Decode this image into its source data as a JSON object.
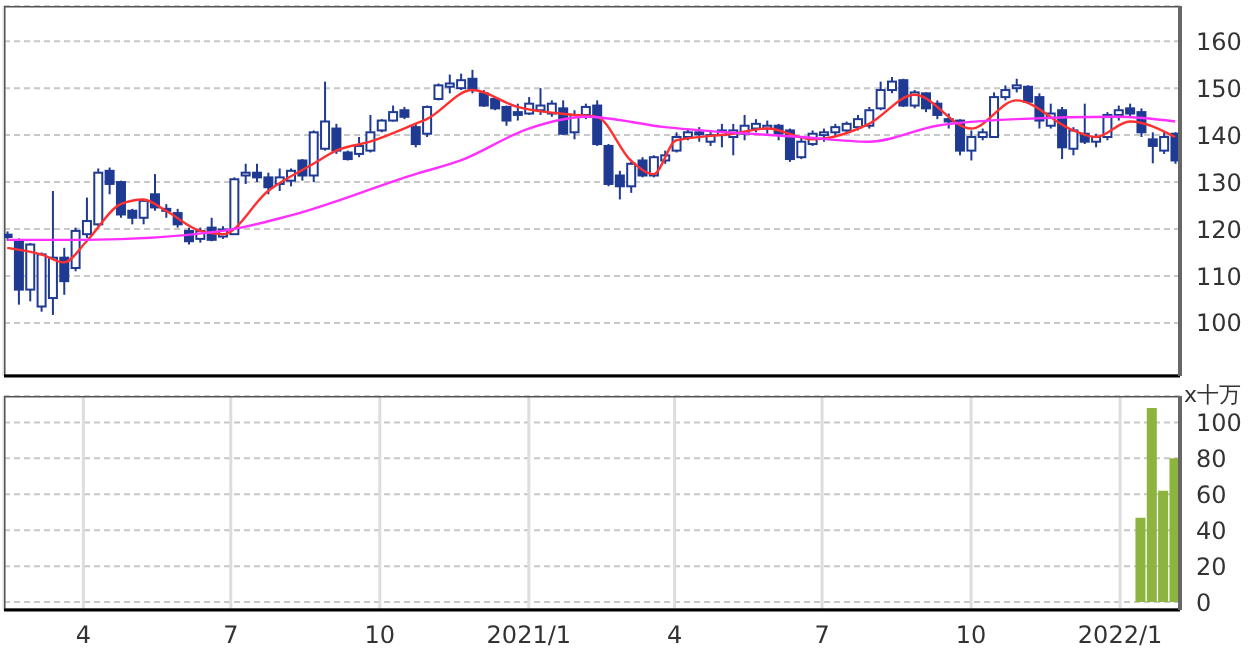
{
  "chart_data": [
    {
      "type": "candlestick",
      "color": "#1f3a93",
      "x": [
        "2020-02-14",
        "2020-02-21",
        "2020-02-28",
        "2020-03-06",
        "2020-03-13",
        "2020-03-20",
        "2020-03-27",
        "2020-04-03",
        "2020-04-10",
        "2020-04-17",
        "2020-04-24",
        "2020-05-01",
        "2020-05-08",
        "2020-05-15",
        "2020-05-22",
        "2020-05-29",
        "2020-06-05",
        "2020-06-12",
        "2020-06-19",
        "2020-06-26",
        "2020-07-03",
        "2020-07-10",
        "2020-07-17",
        "2020-07-24",
        "2020-07-31",
        "2020-08-07",
        "2020-08-14",
        "2020-08-21",
        "2020-08-28",
        "2020-09-04",
        "2020-09-11",
        "2020-09-18",
        "2020-09-25",
        "2020-10-02",
        "2020-10-09",
        "2020-10-16",
        "2020-10-23",
        "2020-10-30",
        "2020-11-06",
        "2020-11-13",
        "2020-11-20",
        "2020-11-27",
        "2020-12-04",
        "2020-12-11",
        "2020-12-18",
        "2020-12-25",
        "2021-01-01",
        "2021-01-08",
        "2021-01-15",
        "2021-01-22",
        "2021-01-29",
        "2021-02-05",
        "2021-02-12",
        "2021-02-19",
        "2021-02-26",
        "2021-03-05",
        "2021-03-12",
        "2021-03-19",
        "2021-03-26",
        "2021-04-02",
        "2021-04-09",
        "2021-04-16",
        "2021-04-23",
        "2021-04-30",
        "2021-05-07",
        "2021-05-14",
        "2021-05-21",
        "2021-05-28",
        "2021-06-04",
        "2021-06-11",
        "2021-06-18",
        "2021-06-25",
        "2021-07-02",
        "2021-07-09",
        "2021-07-16",
        "2021-07-23",
        "2021-07-30",
        "2021-08-06",
        "2021-08-13",
        "2021-08-20",
        "2021-08-27",
        "2021-09-03",
        "2021-09-10",
        "2021-09-17",
        "2021-09-24",
        "2021-10-01",
        "2021-10-08",
        "2021-10-15",
        "2021-10-22",
        "2021-10-29",
        "2021-11-05",
        "2021-11-12",
        "2021-11-19",
        "2021-11-26",
        "2021-12-03",
        "2021-12-10",
        "2021-12-17",
        "2021-12-24",
        "2021-12-31",
        "2022-01-07",
        "2022-01-14",
        "2022-01-21",
        "2022-01-28",
        "2022-02-04"
      ],
      "ohlc": [
        [
          118.8,
          119.5,
          117.5,
          118.3
        ],
        [
          117.4,
          118,
          103.9,
          107.1
        ],
        [
          107.1,
          117,
          104.6,
          116.7
        ],
        [
          103.5,
          115,
          102.4,
          114.6
        ],
        [
          105.3,
          128.1,
          101.7,
          113.9
        ],
        [
          113.9,
          116,
          106,
          108.9
        ],
        [
          111.7,
          120.3,
          111,
          119.6
        ],
        [
          118.9,
          126.7,
          118.1,
          121.7
        ],
        [
          121,
          132.9,
          120.6,
          132
        ],
        [
          132.4,
          133.1,
          127.4,
          129.6
        ],
        [
          130,
          130.3,
          122.4,
          123.1
        ],
        [
          123.9,
          124.3,
          121,
          122.4
        ],
        [
          122.4,
          126.4,
          121,
          126
        ],
        [
          127.4,
          131.7,
          123.9,
          124.6
        ],
        [
          124.3,
          125.3,
          122.4,
          123.9
        ],
        [
          123.4,
          124.3,
          120.3,
          121
        ],
        [
          119.6,
          120.3,
          116.7,
          117.4
        ],
        [
          117.9,
          120.3,
          117.1,
          119.6
        ],
        [
          120.3,
          122.4,
          117.4,
          117.7
        ],
        [
          118.4,
          120.6,
          117.9,
          119.9
        ],
        [
          118.9,
          131,
          118.9,
          130.6
        ],
        [
          131.4,
          133.9,
          129.6,
          132
        ],
        [
          132,
          133.9,
          130,
          131
        ],
        [
          131,
          132,
          127.4,
          128.9
        ],
        [
          129.6,
          132.9,
          128.1,
          131
        ],
        [
          130.3,
          132.9,
          129.1,
          132.4
        ],
        [
          134.6,
          134.9,
          130.3,
          131.4
        ],
        [
          131.4,
          141,
          130,
          140.6
        ],
        [
          137.1,
          151.4,
          136.7,
          142.9
        ],
        [
          141.4,
          142.4,
          136,
          136.7
        ],
        [
          136.3,
          136.7,
          134.6,
          134.9
        ],
        [
          136,
          139.6,
          135.3,
          137.7
        ],
        [
          136.7,
          144.3,
          136.3,
          140.6
        ],
        [
          141,
          143.4,
          140.6,
          143.1
        ],
        [
          143.1,
          146.3,
          142.9,
          144.9
        ],
        [
          145.3,
          146,
          143.4,
          143.9
        ],
        [
          141.7,
          142.4,
          137.4,
          138.1
        ],
        [
          140.3,
          146.3,
          139.6,
          146
        ],
        [
          147.7,
          151,
          147.4,
          150.6
        ],
        [
          150.3,
          152.9,
          148.9,
          151
        ],
        [
          150,
          153.1,
          149.6,
          151.7
        ],
        [
          152,
          153.9,
          148.9,
          149.6
        ],
        [
          148.9,
          149.6,
          146,
          146.3
        ],
        [
          147.7,
          148.1,
          145.3,
          145.7
        ],
        [
          146,
          146.3,
          142,
          143.1
        ],
        [
          144.9,
          146.7,
          143.1,
          144.3
        ],
        [
          144.6,
          148.1,
          144.3,
          146.7
        ],
        [
          145.3,
          150,
          144.3,
          146.3
        ],
        [
          144.6,
          147.4,
          143.9,
          146.7
        ],
        [
          145.7,
          147.4,
          140,
          140.3
        ],
        [
          140.6,
          145.3,
          139.1,
          144.3
        ],
        [
          144.3,
          146.7,
          143.4,
          146
        ],
        [
          146.3,
          147.4,
          137.7,
          138.1
        ],
        [
          137.7,
          138.1,
          129.1,
          129.6
        ],
        [
          131.4,
          132.4,
          126.3,
          129.1
        ],
        [
          129.1,
          134.3,
          127.7,
          133.9
        ],
        [
          134.6,
          135.3,
          131,
          131.4
        ],
        [
          131.4,
          135.7,
          131,
          135.3
        ],
        [
          134.6,
          136.7,
          133.9,
          135.7
        ],
        [
          136.7,
          140.6,
          136.3,
          139.6
        ],
        [
          139.6,
          141.4,
          138.9,
          140.6
        ],
        [
          140.3,
          141.7,
          138.6,
          140.6
        ],
        [
          138.6,
          141,
          137.7,
          140
        ],
        [
          140,
          142.4,
          137.4,
          141
        ],
        [
          139.6,
          142.4,
          135.7,
          141
        ],
        [
          140.3,
          144.3,
          138.9,
          142
        ],
        [
          141.4,
          143.4,
          140.6,
          142.4
        ],
        [
          141.4,
          143.1,
          140.3,
          142
        ],
        [
          142,
          142.4,
          138.9,
          140.3
        ],
        [
          141,
          141.4,
          134.3,
          134.9
        ],
        [
          135.3,
          139.6,
          134.9,
          138.6
        ],
        [
          138.1,
          141,
          137.7,
          140.3
        ],
        [
          140,
          141.4,
          138.6,
          140.6
        ],
        [
          140.6,
          142.4,
          139.6,
          141.7
        ],
        [
          141,
          142.9,
          140.3,
          142.4
        ],
        [
          141.7,
          144.3,
          141,
          143.4
        ],
        [
          142,
          146,
          141.4,
          145.3
        ],
        [
          145.7,
          151.4,
          145.3,
          149.6
        ],
        [
          149.6,
          152.4,
          148.9,
          151.4
        ],
        [
          151.7,
          152,
          146,
          146.3
        ],
        [
          146.3,
          149.6,
          145.7,
          149.1
        ],
        [
          148.9,
          149.1,
          144.9,
          145.7
        ],
        [
          146.7,
          147.4,
          143.4,
          144.3
        ],
        [
          143.4,
          144.6,
          141.4,
          142.9
        ],
        [
          143.1,
          143.4,
          135.7,
          136.7
        ],
        [
          136.7,
          141,
          134.6,
          139.6
        ],
        [
          139.6,
          141.4,
          138.9,
          140.6
        ],
        [
          139.6,
          149.1,
          139.6,
          148.1
        ],
        [
          148.1,
          150.6,
          147.4,
          149.6
        ],
        [
          150,
          152,
          149.1,
          150.6
        ],
        [
          150.3,
          150.6,
          146.7,
          147.1
        ],
        [
          148.1,
          148.9,
          141.4,
          143.1
        ],
        [
          142,
          146.7,
          141.4,
          144.6
        ],
        [
          145.3,
          146,
          134.9,
          137.4
        ],
        [
          137.1,
          141.7,
          135.7,
          141
        ],
        [
          140.3,
          146.7,
          138.1,
          138.6
        ],
        [
          138.6,
          140.3,
          137.4,
          139.6
        ],
        [
          139.6,
          144.9,
          138.9,
          144.3
        ],
        [
          144.3,
          146.3,
          143.1,
          145.3
        ],
        [
          145.7,
          146.7,
          143.9,
          144.6
        ],
        [
          144.9,
          145.7,
          139.6,
          140.6
        ],
        [
          139.1,
          140.6,
          134,
          137.7
        ],
        [
          136.7,
          140.6,
          136,
          139.6
        ],
        [
          140.3,
          140.6,
          133.9,
          134.6
        ]
      ],
      "series": [
        {
          "type": "line",
          "color": "#ff3030",
          "x": [
            "2020-02-14",
            "2020-03-06",
            "2020-03-20",
            "2020-04-03",
            "2020-04-24",
            "2020-05-08",
            "2020-05-22",
            "2020-06-12",
            "2020-06-26",
            "2020-07-24",
            "2020-08-21",
            "2020-09-04",
            "2020-09-25",
            "2020-10-23",
            "2020-10-30",
            "2020-11-27",
            "2020-12-25",
            "2021-01-29",
            "2021-02-12",
            "2021-03-05",
            "2021-03-19",
            "2021-04-02",
            "2021-05-07",
            "2021-05-28",
            "2021-06-25",
            "2021-07-30",
            "2021-08-27",
            "2021-10-01",
            "2021-10-29",
            "2021-12-03",
            "2021-12-17",
            "2022-01-07",
            "2022-02-04"
          ],
          "values": [
            116,
            114.6,
            112.9,
            117.4,
            125.3,
            126.3,
            123.9,
            119.6,
            118.9,
            128.1,
            133.9,
            136.7,
            138.6,
            142.4,
            143.4,
            149.6,
            146,
            144.3,
            143.9,
            134.6,
            131.7,
            138.9,
            140.3,
            141.4,
            139.1,
            142.4,
            148.6,
            141.4,
            147.4,
            141,
            139.6,
            142.9,
            139.6
          ]
        },
        {
          "type": "line",
          "color": "#ff30ff",
          "x": [
            "2020-02-14",
            "2020-04-03",
            "2020-06-26",
            "2020-08-07",
            "2020-10-23",
            "2020-11-20",
            "2021-01-01",
            "2021-02-05",
            "2021-03-26",
            "2021-06-18",
            "2021-07-30",
            "2021-09-10",
            "2021-10-29",
            "2021-12-31",
            "2022-02-04"
          ],
          "values": [
            117.7,
            117.7,
            119.6,
            122.9,
            131.7,
            134.6,
            141.4,
            143.9,
            141.7,
            139.6,
            138.6,
            142,
            143.4,
            143.9,
            142.9
          ]
        }
      ],
      "xlim": [
        "2020-02-12",
        "2022-02-07"
      ],
      "xticks": [
        {
          "value": "2020-04-01",
          "label": null
        },
        {
          "value": "2020-07-01",
          "label": null
        },
        {
          "value": "2020-10-01",
          "label": null
        },
        {
          "value": "2021-01-01",
          "label": null
        },
        {
          "value": "2021-04-01",
          "label": null
        },
        {
          "value": "2021-07-01",
          "label": null
        },
        {
          "value": "2021-10-01",
          "label": null
        },
        {
          "value": "2022-01-01",
          "label": null
        }
      ],
      "ylim": [
        88.7,
        167.5
      ],
      "yticks": [
        100,
        110,
        120,
        130,
        140,
        150,
        160
      ],
      "grid": true,
      "tick_labels": "y"
    },
    {
      "type": "bar",
      "color": "#8db43e",
      "ylabel": "x十万",
      "x": [
        "2022-01-14",
        "2022-01-21",
        "2022-01-28",
        "2022-02-04"
      ],
      "values": [
        47,
        108,
        62,
        80
      ],
      "xlim": [
        "2020-02-12",
        "2022-02-07"
      ],
      "xticks": [
        {
          "value": "2020-04-01",
          "label": "4"
        },
        {
          "value": "2020-07-01",
          "label": "7"
        },
        {
          "value": "2020-10-01",
          "label": "10"
        },
        {
          "value": "2021-01-01",
          "label": "2021/1"
        },
        {
          "value": "2021-04-01",
          "label": "4"
        },
        {
          "value": "2021-07-01",
          "label": "7"
        },
        {
          "value": "2021-10-01",
          "label": "10"
        },
        {
          "value": "2022-01-01",
          "label": "2022/1"
        }
      ],
      "ylim": [
        -4.4,
        114.7
      ],
      "yticks": [
        0,
        20,
        40,
        60,
        80,
        100
      ],
      "grid": true
    }
  ]
}
